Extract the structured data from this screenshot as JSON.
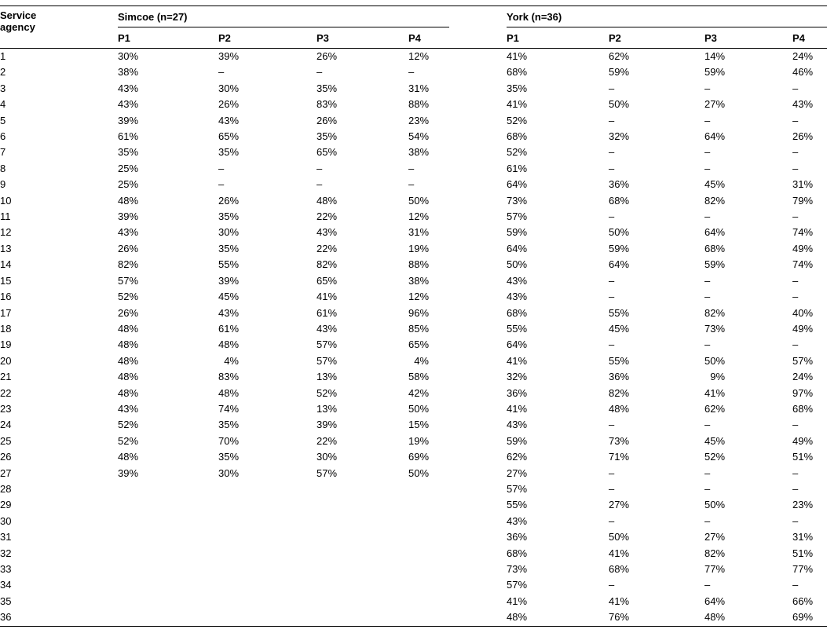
{
  "table": {
    "agency_header": "Service agency",
    "groups": [
      {
        "key": "simcoe",
        "label": "Simcoe (n=27)",
        "columns": [
          "P1",
          "P2",
          "P3",
          "P4"
        ]
      },
      {
        "key": "york",
        "label": "York (n=36)",
        "columns": [
          "P1",
          "P2",
          "P3",
          "P4"
        ]
      }
    ],
    "rows": [
      {
        "agency": "1",
        "simcoe": [
          "30%",
          "39%",
          "26%",
          "12%"
        ],
        "york": [
          "41%",
          "62%",
          "14%",
          "24%"
        ]
      },
      {
        "agency": "2",
        "simcoe": [
          "38%",
          "–",
          "–",
          "–"
        ],
        "york": [
          "68%",
          "59%",
          "59%",
          "46%"
        ]
      },
      {
        "agency": "3",
        "simcoe": [
          "43%",
          "30%",
          "35%",
          "31%"
        ],
        "york": [
          "35%",
          "–",
          "–",
          "–"
        ]
      },
      {
        "agency": "4",
        "simcoe": [
          "43%",
          "26%",
          "83%",
          "88%"
        ],
        "york": [
          "41%",
          "50%",
          "27%",
          "43%"
        ]
      },
      {
        "agency": "5",
        "simcoe": [
          "39%",
          "43%",
          "26%",
          "23%"
        ],
        "york": [
          "52%",
          "–",
          "–",
          "–"
        ]
      },
      {
        "agency": "6",
        "simcoe": [
          "61%",
          "65%",
          "35%",
          "54%"
        ],
        "york": [
          "68%",
          "32%",
          "64%",
          "26%"
        ]
      },
      {
        "agency": "7",
        "simcoe": [
          "35%",
          "35%",
          "65%",
          "38%"
        ],
        "york": [
          "52%",
          "–",
          "–",
          "–"
        ]
      },
      {
        "agency": "8",
        "simcoe": [
          "25%",
          "–",
          "–",
          "–"
        ],
        "york": [
          "61%",
          "–",
          "–",
          "–"
        ]
      },
      {
        "agency": "9",
        "simcoe": [
          "25%",
          "–",
          "–",
          "–"
        ],
        "york": [
          "64%",
          "36%",
          "45%",
          "31%"
        ]
      },
      {
        "agency": "10",
        "simcoe": [
          "48%",
          "26%",
          "48%",
          "50%"
        ],
        "york": [
          "73%",
          "68%",
          "82%",
          "79%"
        ]
      },
      {
        "agency": "11",
        "simcoe": [
          "39%",
          "35%",
          "22%",
          "12%"
        ],
        "york": [
          "57%",
          "–",
          "–",
          "–"
        ]
      },
      {
        "agency": "12",
        "simcoe": [
          "43%",
          "30%",
          "43%",
          "31%"
        ],
        "york": [
          "59%",
          "50%",
          "64%",
          "74%"
        ]
      },
      {
        "agency": "13",
        "simcoe": [
          "26%",
          "35%",
          "22%",
          "19%"
        ],
        "york": [
          "64%",
          "59%",
          "68%",
          "49%"
        ]
      },
      {
        "agency": "14",
        "simcoe": [
          "82%",
          "55%",
          "82%",
          "88%"
        ],
        "york": [
          "50%",
          "64%",
          "59%",
          "74%"
        ]
      },
      {
        "agency": "15",
        "simcoe": [
          "57%",
          "39%",
          "65%",
          "38%"
        ],
        "york": [
          "43%",
          "–",
          "–",
          "–"
        ]
      },
      {
        "agency": "16",
        "simcoe": [
          "52%",
          "45%",
          "41%",
          "12%"
        ],
        "york": [
          "43%",
          "–",
          "–",
          "–"
        ]
      },
      {
        "agency": "17",
        "simcoe": [
          "26%",
          "43%",
          "61%",
          "96%"
        ],
        "york": [
          "68%",
          "55%",
          "82%",
          "40%"
        ]
      },
      {
        "agency": "18",
        "simcoe": [
          "48%",
          "61%",
          "43%",
          "85%"
        ],
        "york": [
          "55%",
          "45%",
          "73%",
          "49%"
        ]
      },
      {
        "agency": "19",
        "simcoe": [
          "48%",
          "48%",
          "57%",
          "65%"
        ],
        "york": [
          "64%",
          "–",
          "–",
          "–"
        ]
      },
      {
        "agency": "20",
        "simcoe": [
          "48%",
          "4%",
          "57%",
          "4%"
        ],
        "york": [
          "41%",
          "55%",
          "50%",
          "57%"
        ]
      },
      {
        "agency": "21",
        "simcoe": [
          "48%",
          "83%",
          "13%",
          "58%"
        ],
        "york": [
          "32%",
          "36%",
          "9%",
          "24%"
        ]
      },
      {
        "agency": "22",
        "simcoe": [
          "48%",
          "48%",
          "52%",
          "42%"
        ],
        "york": [
          "36%",
          "82%",
          "41%",
          "97%"
        ]
      },
      {
        "agency": "23",
        "simcoe": [
          "43%",
          "74%",
          "13%",
          "50%"
        ],
        "york": [
          "41%",
          "48%",
          "62%",
          "68%"
        ]
      },
      {
        "agency": "24",
        "simcoe": [
          "52%",
          "35%",
          "39%",
          "15%"
        ],
        "york": [
          "43%",
          "–",
          "–",
          "–"
        ]
      },
      {
        "agency": "25",
        "simcoe": [
          "52%",
          "70%",
          "22%",
          "19%"
        ],
        "york": [
          "59%",
          "73%",
          "45%",
          "49%"
        ]
      },
      {
        "agency": "26",
        "simcoe": [
          "48%",
          "35%",
          "30%",
          "69%"
        ],
        "york": [
          "62%",
          "71%",
          "52%",
          "51%"
        ]
      },
      {
        "agency": "27",
        "simcoe": [
          "39%",
          "30%",
          "57%",
          "50%"
        ],
        "york": [
          "27%",
          "–",
          "–",
          "–"
        ]
      },
      {
        "agency": "28",
        "simcoe": [
          "",
          "",
          "",
          ""
        ],
        "york": [
          "57%",
          "–",
          "–",
          "–"
        ]
      },
      {
        "agency": "29",
        "simcoe": [
          "",
          "",
          "",
          ""
        ],
        "york": [
          "55%",
          "27%",
          "50%",
          "23%"
        ]
      },
      {
        "agency": "30",
        "simcoe": [
          "",
          "",
          "",
          ""
        ],
        "york": [
          "43%",
          "–",
          "–",
          "–"
        ]
      },
      {
        "agency": "31",
        "simcoe": [
          "",
          "",
          "",
          ""
        ],
        "york": [
          "36%",
          "50%",
          "27%",
          "31%"
        ]
      },
      {
        "agency": "32",
        "simcoe": [
          "",
          "",
          "",
          ""
        ],
        "york": [
          "68%",
          "41%",
          "82%",
          "51%"
        ]
      },
      {
        "agency": "33",
        "simcoe": [
          "",
          "",
          "",
          ""
        ],
        "york": [
          "73%",
          "68%",
          "77%",
          "77%"
        ]
      },
      {
        "agency": "34",
        "simcoe": [
          "",
          "",
          "",
          ""
        ],
        "york": [
          "57%",
          "–",
          "–",
          "–"
        ]
      },
      {
        "agency": "35",
        "simcoe": [
          "",
          "",
          "",
          ""
        ],
        "york": [
          "41%",
          "41%",
          "64%",
          "66%"
        ]
      },
      {
        "agency": "36",
        "simcoe": [
          "",
          "",
          "",
          ""
        ],
        "york": [
          "48%",
          "76%",
          "48%",
          "69%"
        ]
      }
    ]
  }
}
